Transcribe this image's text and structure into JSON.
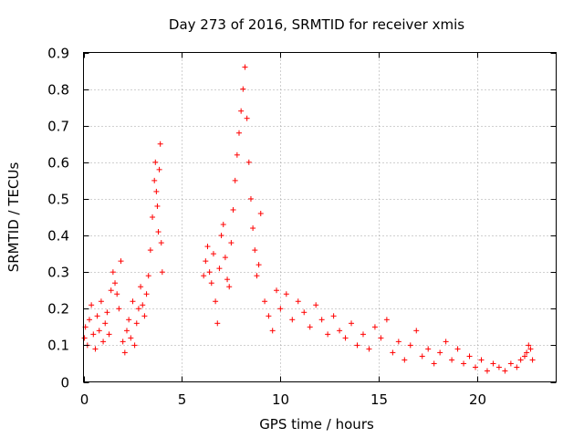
{
  "chart_data": {
    "type": "scatter",
    "title": "Day 273 of 2016, SRMTID for receiver xmis",
    "xlabel": "GPS time / hours",
    "ylabel": "SRMTID / TECUs",
    "xlim": [
      0,
      24
    ],
    "ylim": [
      0,
      0.9
    ],
    "x_ticks": [
      "0",
      "5",
      "10",
      "15",
      "20"
    ],
    "x_tick_values": [
      0,
      5,
      10,
      15,
      20
    ],
    "y_ticks": [
      "0",
      "0.1",
      "0.2",
      "0.3",
      "0.4",
      "0.5",
      "0.6",
      "0.7",
      "0.8",
      "0.9"
    ],
    "y_tick_values": [
      0,
      0.1,
      0.2,
      0.3,
      0.4,
      0.5,
      0.6,
      0.7,
      0.8,
      0.9
    ],
    "grid": true,
    "marker": "+",
    "color": "#ff0000",
    "series": [
      {
        "name": "SRMTID",
        "x": [
          0.05,
          0.1,
          0.2,
          0.3,
          0.4,
          0.5,
          0.6,
          0.7,
          0.8,
          0.9,
          1.0,
          1.1,
          1.2,
          1.3,
          1.4,
          1.5,
          1.6,
          1.7,
          1.8,
          1.9,
          2.0,
          2.1,
          2.2,
          2.3,
          2.4,
          2.5,
          2.6,
          2.7,
          2.8,
          2.9,
          3.0,
          3.1,
          3.2,
          3.3,
          3.4,
          3.5,
          3.6,
          3.65,
          3.7,
          3.75,
          3.8,
          3.85,
          3.9,
          3.95,
          4.0,
          6.1,
          6.2,
          6.3,
          6.4,
          6.5,
          6.6,
          6.7,
          6.8,
          6.9,
          7.0,
          7.1,
          7.2,
          7.3,
          7.4,
          7.5,
          7.6,
          7.7,
          7.8,
          7.9,
          8.0,
          8.1,
          8.2,
          8.3,
          8.4,
          8.5,
          8.6,
          8.7,
          8.8,
          8.9,
          9.0,
          9.2,
          9.4,
          9.6,
          9.8,
          10.0,
          10.3,
          10.6,
          10.9,
          11.2,
          11.5,
          11.8,
          12.1,
          12.4,
          12.7,
          13.0,
          13.3,
          13.6,
          13.9,
          14.2,
          14.5,
          14.8,
          15.1,
          15.4,
          15.7,
          16.0,
          16.3,
          16.6,
          16.9,
          17.2,
          17.5,
          17.8,
          18.1,
          18.4,
          18.7,
          19.0,
          19.3,
          19.6,
          19.9,
          20.2,
          20.5,
          20.8,
          21.1,
          21.4,
          21.7,
          22.0,
          22.2,
          22.4,
          22.5,
          22.6,
          22.7,
          22.8
        ],
        "y": [
          0.12,
          0.15,
          0.1,
          0.17,
          0.21,
          0.13,
          0.09,
          0.18,
          0.14,
          0.22,
          0.11,
          0.16,
          0.19,
          0.13,
          0.25,
          0.3,
          0.27,
          0.24,
          0.2,
          0.33,
          0.11,
          0.08,
          0.14,
          0.17,
          0.12,
          0.22,
          0.1,
          0.16,
          0.2,
          0.26,
          0.21,
          0.18,
          0.24,
          0.29,
          0.36,
          0.45,
          0.55,
          0.6,
          0.52,
          0.48,
          0.41,
          0.58,
          0.65,
          0.38,
          0.3,
          0.29,
          0.33,
          0.37,
          0.3,
          0.27,
          0.35,
          0.22,
          0.16,
          0.31,
          0.4,
          0.43,
          0.34,
          0.28,
          0.26,
          0.38,
          0.47,
          0.55,
          0.62,
          0.68,
          0.74,
          0.8,
          0.86,
          0.72,
          0.6,
          0.5,
          0.42,
          0.36,
          0.29,
          0.32,
          0.46,
          0.22,
          0.18,
          0.14,
          0.25,
          0.2,
          0.24,
          0.17,
          0.22,
          0.19,
          0.15,
          0.21,
          0.17,
          0.13,
          0.18,
          0.14,
          0.12,
          0.16,
          0.1,
          0.13,
          0.09,
          0.15,
          0.12,
          0.17,
          0.08,
          0.11,
          0.06,
          0.1,
          0.14,
          0.07,
          0.09,
          0.05,
          0.08,
          0.11,
          0.06,
          0.09,
          0.05,
          0.07,
          0.04,
          0.06,
          0.03,
          0.05,
          0.04,
          0.03,
          0.05,
          0.04,
          0.06,
          0.07,
          0.08,
          0.1,
          0.09,
          0.06
        ]
      }
    ]
  }
}
